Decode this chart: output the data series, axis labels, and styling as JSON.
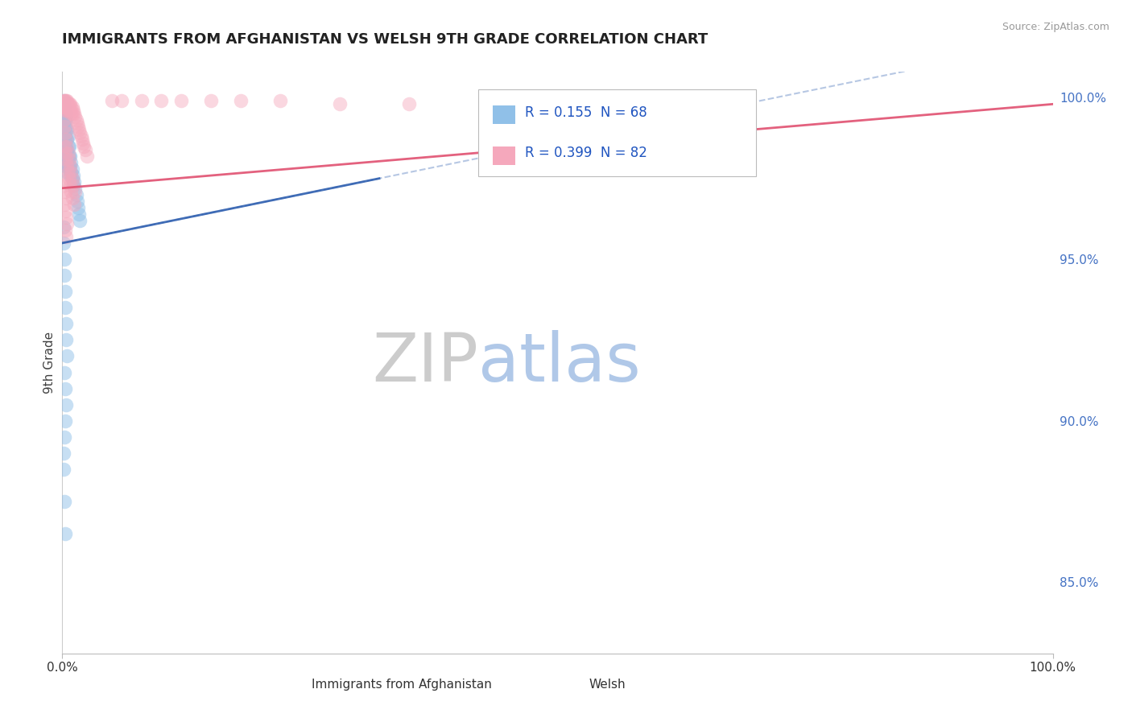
{
  "title": "IMMIGRANTS FROM AFGHANISTAN VS WELSH 9TH GRADE CORRELATION CHART",
  "source": "Source: ZipAtlas.com",
  "ylabel": "9th Grade",
  "ytick_labels": [
    "85.0%",
    "90.0%",
    "95.0%",
    "100.0%"
  ],
  "ytick_values": [
    0.85,
    0.9,
    0.95,
    1.0
  ],
  "xtick_labels": [
    "0.0%",
    "100.0%"
  ],
  "xtick_values": [
    0.0,
    1.0
  ],
  "xlim": [
    0.0,
    1.0
  ],
  "ylim": [
    0.828,
    1.008
  ],
  "legend1_label": "Immigrants from Afghanistan",
  "legend2_label": "Welsh",
  "R1": 0.155,
  "N1": 68,
  "R2": 0.399,
  "N2": 82,
  "color_blue": "#90C0E8",
  "color_pink": "#F5A8BC",
  "color_blue_line": "#3060B0",
  "color_pink_line": "#E05070",
  "watermark_text": "ZIPatlas",
  "watermark_color": "#E8EEF5",
  "tick_color": "#4472C4",
  "grid_color": "#CCCCCC",
  "background_color": "#FFFFFF",
  "blue_x": [
    0.001,
    0.001,
    0.001,
    0.001,
    0.002,
    0.002,
    0.002,
    0.002,
    0.002,
    0.002,
    0.003,
    0.003,
    0.003,
    0.003,
    0.003,
    0.003,
    0.003,
    0.004,
    0.004,
    0.004,
    0.004,
    0.004,
    0.005,
    0.005,
    0.005,
    0.005,
    0.005,
    0.006,
    0.006,
    0.006,
    0.006,
    0.007,
    0.007,
    0.007,
    0.008,
    0.008,
    0.008,
    0.009,
    0.009,
    0.01,
    0.01,
    0.011,
    0.011,
    0.012,
    0.013,
    0.014,
    0.015,
    0.016,
    0.017,
    0.018,
    0.001,
    0.001,
    0.002,
    0.002,
    0.003,
    0.003,
    0.004,
    0.004,
    0.005,
    0.002,
    0.003,
    0.004,
    0.003,
    0.002,
    0.001,
    0.001,
    0.002,
    0.003
  ],
  "blue_y": [
    0.999,
    0.998,
    0.996,
    0.993,
    0.997,
    0.995,
    0.993,
    0.99,
    0.987,
    0.985,
    0.995,
    0.993,
    0.991,
    0.988,
    0.985,
    0.982,
    0.979,
    0.993,
    0.99,
    0.987,
    0.984,
    0.981,
    0.99,
    0.987,
    0.984,
    0.98,
    0.977,
    0.988,
    0.985,
    0.982,
    0.979,
    0.985,
    0.982,
    0.978,
    0.982,
    0.979,
    0.976,
    0.98,
    0.977,
    0.978,
    0.975,
    0.976,
    0.973,
    0.974,
    0.972,
    0.97,
    0.968,
    0.966,
    0.964,
    0.962,
    0.96,
    0.955,
    0.95,
    0.945,
    0.94,
    0.935,
    0.93,
    0.925,
    0.92,
    0.915,
    0.91,
    0.905,
    0.9,
    0.895,
    0.89,
    0.885,
    0.875,
    0.865
  ],
  "pink_x": [
    0.001,
    0.001,
    0.001,
    0.002,
    0.002,
    0.002,
    0.003,
    0.003,
    0.003,
    0.003,
    0.004,
    0.004,
    0.004,
    0.005,
    0.005,
    0.005,
    0.006,
    0.006,
    0.007,
    0.007,
    0.008,
    0.008,
    0.009,
    0.009,
    0.01,
    0.01,
    0.011,
    0.012,
    0.013,
    0.014,
    0.015,
    0.016,
    0.017,
    0.018,
    0.019,
    0.02,
    0.021,
    0.022,
    0.023,
    0.025,
    0.001,
    0.002,
    0.003,
    0.004,
    0.002,
    0.003,
    0.004,
    0.005,
    0.003,
    0.004,
    0.002,
    0.003,
    0.004,
    0.005,
    0.006,
    0.007,
    0.008,
    0.009,
    0.01,
    0.012,
    0.05,
    0.06,
    0.08,
    0.1,
    0.12,
    0.15,
    0.18,
    0.22,
    0.28,
    0.35,
    0.001,
    0.002,
    0.003,
    0.004,
    0.005,
    0.006,
    0.007,
    0.008,
    0.009,
    0.01,
    0.011,
    0.013
  ],
  "pink_y": [
    0.999,
    0.998,
    0.997,
    0.999,
    0.998,
    0.997,
    0.999,
    0.998,
    0.997,
    0.996,
    0.999,
    0.998,
    0.997,
    0.999,
    0.998,
    0.996,
    0.998,
    0.997,
    0.998,
    0.996,
    0.998,
    0.996,
    0.997,
    0.995,
    0.997,
    0.995,
    0.996,
    0.995,
    0.994,
    0.993,
    0.992,
    0.991,
    0.99,
    0.989,
    0.988,
    0.987,
    0.986,
    0.985,
    0.984,
    0.982,
    0.975,
    0.973,
    0.971,
    0.969,
    0.967,
    0.965,
    0.963,
    0.961,
    0.959,
    0.957,
    0.985,
    0.983,
    0.981,
    0.979,
    0.977,
    0.975,
    0.973,
    0.971,
    0.969,
    0.967,
    0.999,
    0.999,
    0.999,
    0.999,
    0.999,
    0.999,
    0.999,
    0.999,
    0.998,
    0.998,
    0.993,
    0.991,
    0.989,
    0.987,
    0.985,
    0.983,
    0.981,
    0.979,
    0.977,
    0.975,
    0.973,
    0.971
  ],
  "blue_trend_x0": 0.0,
  "blue_trend_y0": 0.955,
  "blue_trend_x1": 0.32,
  "blue_trend_y1": 0.975,
  "pink_trend_x0": 0.0,
  "pink_trend_y0": 0.972,
  "pink_trend_x1": 1.0,
  "pink_trend_y1": 0.998
}
